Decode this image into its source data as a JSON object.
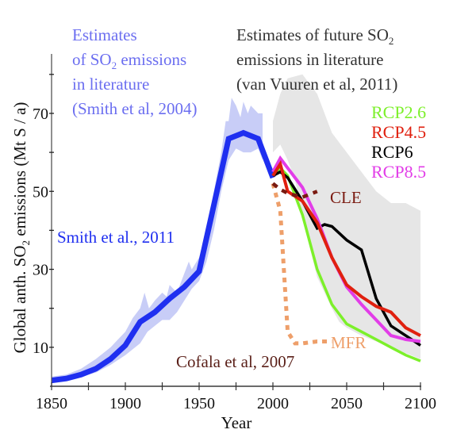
{
  "chart_data": {
    "type": "line",
    "title": "",
    "xlabel": "Year",
    "ylabel": "Global anth. SO₂ emissions (Mt S / a)",
    "ylabel_parts": {
      "pre": "Global anth. SO",
      "sub": "2",
      "post": " emissions (Mt S / a)"
    },
    "xlim": [
      1850,
      2100
    ],
    "ylim": [
      0,
      82
    ],
    "x_ticks": [
      1850,
      1875,
      1900,
      1925,
      1950,
      1975,
      2000,
      2025,
      2050,
      2075,
      2100
    ],
    "x_tick_labels": [
      "1850",
      "",
      "1900",
      "",
      "1950",
      "",
      "2000",
      "",
      "2050",
      "",
      "2100"
    ],
    "y_ticks": [
      10,
      20,
      30,
      40,
      50,
      60,
      70,
      80
    ],
    "y_tick_labels": [
      "10",
      "",
      "30",
      "",
      "50",
      "",
      "70",
      ""
    ],
    "grid": false,
    "bands": [
      {
        "name": "Estimates of SO2 emissions in literature (Smith et al, 2004)",
        "color": "#c8cdf7",
        "upper": [
          [
            1850,
            2.5
          ],
          [
            1860,
            3
          ],
          [
            1870,
            4.5
          ],
          [
            1880,
            7
          ],
          [
            1890,
            10
          ],
          [
            1895,
            12
          ],
          [
            1900,
            14
          ],
          [
            1905,
            17.5
          ],
          [
            1910,
            20
          ],
          [
            1913,
            24
          ],
          [
            1916,
            20
          ],
          [
            1920,
            22
          ],
          [
            1925,
            24
          ],
          [
            1928,
            23
          ],
          [
            1930,
            26
          ],
          [
            1935,
            24
          ],
          [
            1940,
            29
          ],
          [
            1943,
            32
          ],
          [
            1945,
            30
          ],
          [
            1950,
            33
          ],
          [
            1955,
            40
          ],
          [
            1960,
            50
          ],
          [
            1965,
            60
          ],
          [
            1968,
            68
          ],
          [
            1970,
            68
          ],
          [
            1972,
            74
          ],
          [
            1975,
            72
          ],
          [
            1978,
            69
          ],
          [
            1980,
            73
          ],
          [
            1983,
            70
          ],
          [
            1985,
            72
          ],
          [
            1990,
            70
          ],
          [
            1993,
            70
          ]
        ],
        "lower": [
          [
            1993,
            58
          ],
          [
            1990,
            61
          ],
          [
            1985,
            60
          ],
          [
            1980,
            60
          ],
          [
            1975,
            61
          ],
          [
            1970,
            58
          ],
          [
            1965,
            50
          ],
          [
            1960,
            40
          ],
          [
            1955,
            32
          ],
          [
            1950,
            27
          ],
          [
            1945,
            25
          ],
          [
            1940,
            22
          ],
          [
            1935,
            19
          ],
          [
            1930,
            17
          ],
          [
            1925,
            17
          ],
          [
            1920,
            15.5
          ],
          [
            1915,
            14
          ],
          [
            1910,
            11
          ],
          [
            1900,
            8
          ],
          [
            1890,
            5.5
          ],
          [
            1880,
            3.5
          ],
          [
            1870,
            2.5
          ],
          [
            1860,
            1.8
          ],
          [
            1850,
            1.5
          ]
        ]
      },
      {
        "name": "Estimates of future SO2 emissions in literature (van Vuuren et al, 2011)",
        "color": "#e6e6e6",
        "upper": [
          [
            2000,
            68
          ],
          [
            2005,
            75
          ],
          [
            2010,
            79
          ],
          [
            2020,
            80
          ],
          [
            2030,
            75
          ],
          [
            2040,
            65
          ],
          [
            2050,
            60
          ],
          [
            2060,
            55
          ],
          [
            2070,
            50
          ],
          [
            2080,
            47
          ],
          [
            2090,
            47
          ],
          [
            2100,
            45
          ]
        ],
        "lower": [
          [
            2100,
            7
          ],
          [
            2090,
            8.5
          ],
          [
            2080,
            10
          ],
          [
            2070,
            11.5
          ],
          [
            2060,
            13
          ],
          [
            2050,
            15
          ],
          [
            2045,
            16.5
          ],
          [
            2040,
            20
          ],
          [
            2030,
            28
          ],
          [
            2020,
            43
          ],
          [
            2015,
            53
          ],
          [
            2010,
            58
          ],
          [
            2005,
            62
          ],
          [
            2000,
            60
          ]
        ]
      }
    ],
    "series": [
      {
        "name": "Smith et al., 2011",
        "color": "#1f2ff0",
        "width": 7,
        "dash": false,
        "x": [
          1850,
          1860,
          1870,
          1880,
          1890,
          1900,
          1910,
          1920,
          1930,
          1940,
          1950,
          1960,
          1970,
          1980,
          1990,
          2000
        ],
        "y": [
          1.5,
          2,
          3,
          4.5,
          7,
          10.5,
          16.5,
          19,
          22.5,
          25.5,
          29.5,
          46.5,
          63.5,
          65,
          63.5,
          53.5
        ]
      },
      {
        "name": "RCP2.6",
        "color": "#7cf02a",
        "width": 3.5,
        "dash": false,
        "x": [
          2000,
          2005,
          2010,
          2020,
          2030,
          2040,
          2050,
          2060,
          2070,
          2080,
          2090,
          2100
        ],
        "y": [
          54,
          56,
          54,
          44,
          30,
          21,
          16,
          14,
          12,
          10,
          8,
          6.5
        ]
      },
      {
        "name": "RCP4.5",
        "color": "#e0200f",
        "width": 4,
        "dash": false,
        "x": [
          2000,
          2005,
          2010,
          2020,
          2030,
          2040,
          2050,
          2060,
          2070,
          2080,
          2090,
          2100
        ],
        "y": [
          54,
          57,
          50,
          47.5,
          42,
          33,
          26,
          23,
          20.5,
          19,
          15,
          13
        ]
      },
      {
        "name": "RCP6",
        "color": "#000000",
        "width": 3.5,
        "dash": false,
        "x": [
          2000,
          2005,
          2010,
          2020,
          2030,
          2035,
          2040,
          2050,
          2060,
          2070,
          2080,
          2090,
          2100
        ],
        "y": [
          54,
          55,
          53.5,
          47.5,
          40.5,
          41.5,
          41,
          37.5,
          35,
          22.5,
          15.5,
          13,
          10.5
        ]
      },
      {
        "name": "RCP8.5",
        "color": "#e23de8",
        "width": 4,
        "dash": false,
        "x": [
          2000,
          2005,
          2010,
          2020,
          2030,
          2040,
          2050,
          2060,
          2070,
          2080,
          2090,
          2100
        ],
        "y": [
          55,
          58.5,
          56,
          51,
          43,
          33,
          25.5,
          21,
          17,
          13,
          12,
          11.5
        ]
      },
      {
        "name": "CLE",
        "color": "#7a1a10",
        "width": 4.5,
        "dash": true,
        "x": [
          2000,
          2005,
          2010,
          2015,
          2020,
          2030
        ],
        "y": [
          52,
          50.5,
          49.5,
          49,
          48.5,
          50
        ]
      },
      {
        "name": "MFR",
        "color": "#ee9f6a",
        "width": 5,
        "dash": true,
        "x": [
          2000,
          2005,
          2010,
          2015,
          2020,
          2030,
          2040
        ],
        "y": [
          52,
          45,
          14,
          11,
          11,
          11.5,
          11.5
        ]
      }
    ],
    "annotations": {
      "smith2004": {
        "line1": "Estimates",
        "line2_pre": "of SO",
        "line2_sub": "2",
        "line2_post": " emissions",
        "line3": "in literature",
        "line4": "(Smith et al, 2004)",
        "color": "#6b6ef0"
      },
      "vanvuuren": {
        "line1_pre": "Estimates of future SO",
        "line1_sub": "2",
        "line2": "emissions in literature",
        "line3": "(van Vuuren et al, 2011)",
        "color": "#333333"
      },
      "smith2011": {
        "text": "Smith et al., 2011",
        "color": "#1f2ff0"
      },
      "cofala": {
        "text": "Cofala et al, 2007",
        "color": "#5a1f18"
      },
      "cle": {
        "text": "CLE",
        "color": "#7a1a10"
      },
      "mfr": {
        "text": "MFR",
        "color": "#ee9f6a"
      }
    },
    "legend": {
      "placement": "top-right",
      "entries": [
        {
          "label": "RCP2.6",
          "color": "#7cf02a"
        },
        {
          "label": "RCP4.5",
          "color": "#e0200f"
        },
        {
          "label": "RCP6",
          "color": "#000000"
        },
        {
          "label": "RCP8.5",
          "color": "#e23de8"
        }
      ]
    }
  }
}
